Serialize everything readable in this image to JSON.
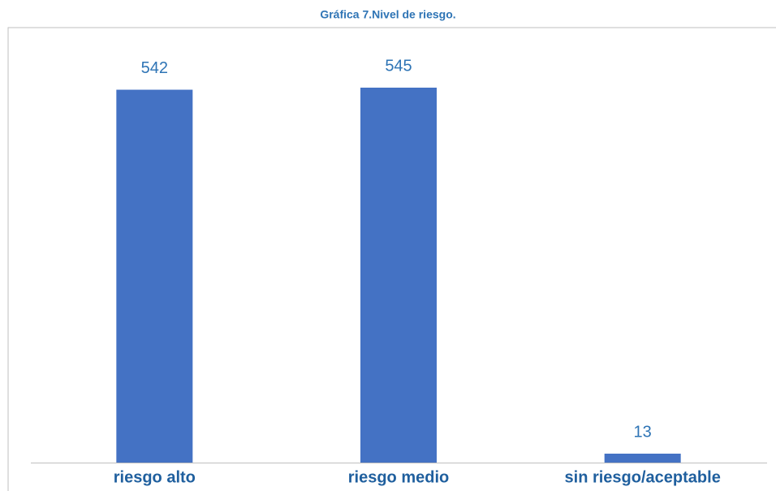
{
  "chart_data": {
    "type": "bar",
    "title": "Gráfica 7.Nivel de riesgo.",
    "categories": [
      "riesgo alto",
      "riesgo medio",
      "sin riesgo/aceptable"
    ],
    "values": [
      542,
      545,
      13
    ],
    "color": "#4472c4"
  }
}
